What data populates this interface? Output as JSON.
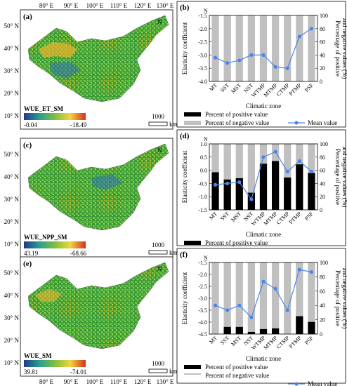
{
  "lon_ticks": [
    "80° E",
    "90° E",
    "100° E",
    "110° E",
    "120° E",
    "130° E"
  ],
  "lat_ticks": [
    "50° N",
    "40° N",
    "30° N",
    "20° N",
    "10° N"
  ],
  "north_symbol": "N",
  "scale_label": "1000",
  "scale_unit": "km",
  "climatic_zone_label": "Climatic zone",
  "ylabel_left": "Elasticity coefficient",
  "ylabel_right_line1": "Percentage of positive",
  "ylabel_right_line2": "and negative values (%)",
  "legend": {
    "positive": "Percent of positive value",
    "negative": "Percent of negative value",
    "mean": "Mean value"
  },
  "colors": {
    "positive_bar": "#000000",
    "negative_bar": "#c0c0c0",
    "mean_line": "#4a86e8"
  },
  "maps": [
    {
      "panel": "(a)",
      "title": "WUE_ET_SM",
      "min": "-0.04",
      "max": "-18.49"
    },
    {
      "panel": "(c)",
      "title": "WUE_NPP_SM",
      "min": "43.19",
      "max": "-68.66"
    },
    {
      "panel": "(e)",
      "title": "WUE_SM",
      "min": "39.81",
      "max": "-74.01"
    }
  ],
  "chart_data": [
    {
      "type": "bar",
      "panel": "(b)",
      "categories": [
        "MT",
        "SST",
        "MST",
        "NST",
        "WTMP",
        "MTMP",
        "CTMP",
        "PTMP",
        "PSF"
      ],
      "series": [
        {
          "name": "Percent of positive value",
          "values": [
            0,
            0,
            0,
            0,
            0,
            0,
            0,
            0,
            0
          ]
        },
        {
          "name": "Percent of negative value",
          "values": [
            100,
            100,
            100,
            100,
            100,
            100,
            100,
            100,
            100
          ]
        },
        {
          "name": "Mean value",
          "values": [
            -3.1,
            -3.3,
            -3.2,
            -3.0,
            -3.0,
            -3.45,
            -3.5,
            -2.3,
            -2.0
          ]
        }
      ],
      "ylim": [
        -4.0,
        -1.5
      ],
      "yticks": [
        "-1.5",
        "-2.0",
        "-2.5",
        "-3.0",
        "-3.5",
        "-4.0"
      ],
      "y2lim": [
        0,
        100
      ],
      "y2ticks": [
        "0",
        "20",
        "40",
        "60",
        "80",
        "100"
      ]
    },
    {
      "type": "bar",
      "panel": "(d)",
      "categories": [
        "MT",
        "SST",
        "MST",
        "NST",
        "WTMP",
        "MTMP",
        "CTMP",
        "PTMP",
        "PSF"
      ],
      "series": [
        {
          "name": "Percent of positive value",
          "values": [
            57,
            46,
            48,
            26,
            70,
            74,
            49,
            69,
            56
          ]
        },
        {
          "name": "Percent of negative value",
          "values": [
            43,
            54,
            52,
            74,
            30,
            26,
            51,
            31,
            44
          ]
        },
        {
          "name": "Mean value",
          "values": [
            -0.55,
            -0.5,
            -0.45,
            -1.1,
            0.5,
            0.7,
            -0.05,
            0.35,
            -0.05
          ]
        }
      ],
      "ylim": [
        -1.5,
        1.0
      ],
      "yticks": [
        "1.0",
        "0.5",
        "0.0",
        "-0.5",
        "-1.0",
        "-1.5"
      ],
      "y2lim": [
        0,
        100
      ],
      "y2ticks": [
        "0",
        "20",
        "40",
        "60",
        "80",
        "100"
      ]
    },
    {
      "type": "bar",
      "panel": "(f)",
      "categories": [
        "MT",
        "SST",
        "MST",
        "NST",
        "WTMP",
        "MTMP",
        "CTMP",
        "PTMP",
        "PSF"
      ],
      "series": [
        {
          "name": "Percent of positive value",
          "values": [
            0,
            10,
            10,
            3,
            7,
            8,
            0,
            25,
            17
          ]
        },
        {
          "name": "Percent of negative value",
          "values": [
            100,
            90,
            90,
            97,
            93,
            92,
            100,
            75,
            83
          ]
        },
        {
          "name": "Mean value",
          "values": [
            -3.3,
            -3.5,
            -3.3,
            -3.8,
            -2.3,
            -2.6,
            -3.5,
            -1.8,
            -1.9
          ]
        }
      ],
      "ylim": [
        -4.5,
        -1.5
      ],
      "yticks": [
        "-1.5",
        "-2.0",
        "-2.5",
        "-3.0",
        "-3.5",
        "-4.0",
        "-4.5"
      ],
      "y2lim": [
        0,
        100
      ],
      "y2ticks": [
        "0",
        "20",
        "40",
        "60",
        "80",
        "100"
      ]
    }
  ]
}
